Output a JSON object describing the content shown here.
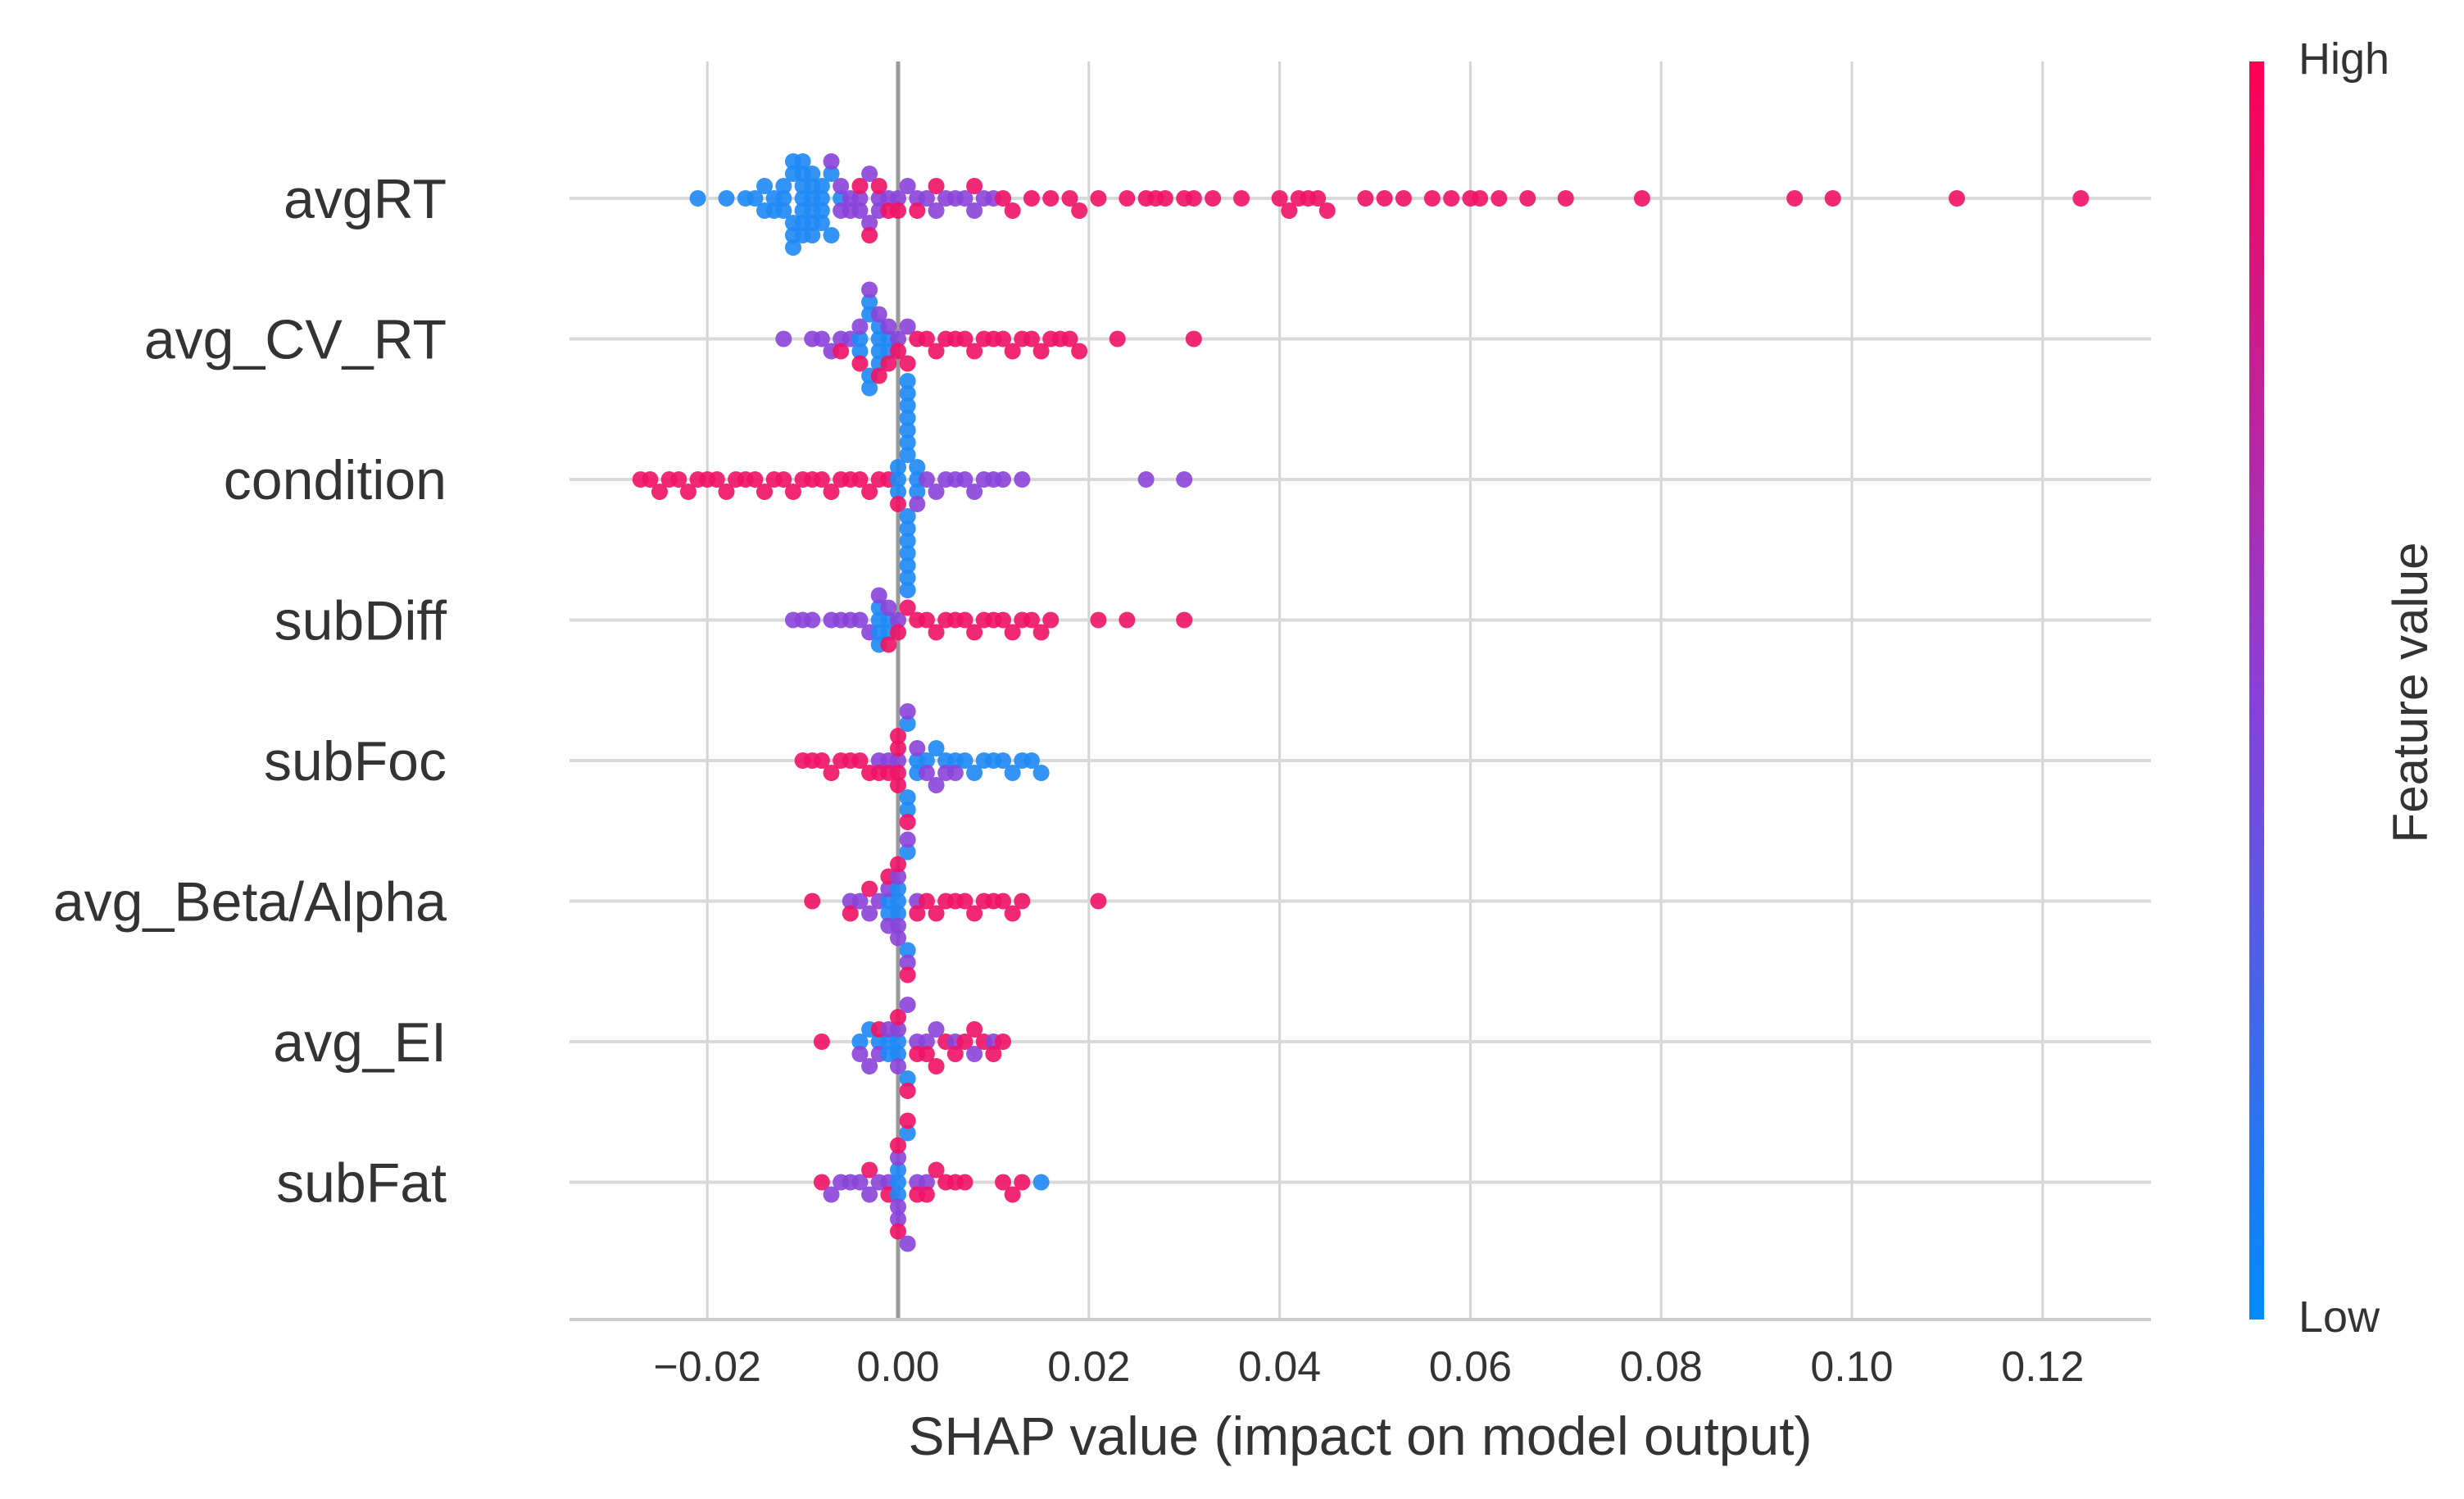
{
  "chart_data": {
    "type": "scatter",
    "subtype": "shap-beeswarm",
    "title": "",
    "xlabel": "SHAP value (impact on model output)",
    "ylabel": "",
    "xlim": [
      -0.034,
      0.132
    ],
    "x_ticks": [
      -0.02,
      0.0,
      0.02,
      0.04,
      0.06,
      0.08,
      0.1,
      0.12
    ],
    "x_tick_labels": [
      "−0.02",
      "0.00",
      "0.02",
      "0.04",
      "0.06",
      "0.08",
      "0.10",
      "0.12"
    ],
    "grid": true,
    "features": [
      "avgRT",
      "avg_CV_RT",
      "condition",
      "subDiff",
      "subFoc",
      "avg_Beta/Alpha",
      "avg_EI",
      "subFat"
    ],
    "colorbar": {
      "title": "Feature value",
      "high_label": "High",
      "low_label": "Low",
      "high_color": "#ff0052",
      "low_color": "#008bfb"
    },
    "series": [
      {
        "feature": "avgRT",
        "low_values": [
          -0.021,
          -0.018,
          -0.016,
          -0.015,
          -0.014,
          -0.014,
          -0.013,
          -0.013,
          -0.012,
          -0.012,
          -0.012,
          -0.011,
          -0.011,
          -0.011,
          -0.011,
          -0.011,
          -0.01,
          -0.01,
          -0.01,
          -0.01,
          -0.01,
          -0.01,
          -0.01,
          -0.009,
          -0.009,
          -0.009,
          -0.009,
          -0.009,
          -0.009,
          -0.008,
          -0.008,
          -0.008,
          -0.008,
          -0.007,
          -0.007,
          -0.006
        ],
        "mid_values": [
          -0.007,
          -0.006,
          -0.006,
          -0.005,
          -0.005,
          -0.004,
          -0.004,
          -0.003,
          -0.003,
          -0.002,
          -0.002,
          -0.001,
          0.0,
          0.001,
          0.002,
          0.003,
          0.004,
          0.005,
          0.006,
          0.007,
          0.008,
          0.009,
          0.01
        ],
        "high_values": [
          -0.004,
          -0.003,
          -0.002,
          -0.001,
          0.0,
          0.002,
          0.004,
          0.008,
          0.011,
          0.012,
          0.014,
          0.016,
          0.018,
          0.019,
          0.021,
          0.024,
          0.026,
          0.027,
          0.028,
          0.03,
          0.031,
          0.033,
          0.036,
          0.04,
          0.041,
          0.042,
          0.043,
          0.044,
          0.045,
          0.049,
          0.051,
          0.053,
          0.056,
          0.058,
          0.06,
          0.061,
          0.063,
          0.066,
          0.07,
          0.078,
          0.094,
          0.098,
          0.111,
          0.124
        ]
      },
      {
        "feature": "avg_CV_RT",
        "low_values": [
          -0.004,
          -0.004,
          -0.003,
          -0.003,
          -0.003,
          -0.003,
          -0.002,
          -0.002,
          -0.002,
          -0.002,
          -0.001,
          -0.001
        ],
        "mid_values": [
          -0.012,
          -0.009,
          -0.008,
          -0.007,
          -0.006,
          -0.005,
          -0.004,
          -0.003,
          -0.002,
          -0.001,
          0.0,
          0.001
        ],
        "high_values": [
          -0.006,
          -0.004,
          -0.002,
          -0.001,
          0.0,
          0.001,
          0.002,
          0.003,
          0.004,
          0.005,
          0.006,
          0.007,
          0.008,
          0.009,
          0.01,
          0.011,
          0.012,
          0.013,
          0.014,
          0.015,
          0.016,
          0.017,
          0.018,
          0.019,
          0.023,
          0.031
        ]
      },
      {
        "feature": "condition",
        "low_values": [
          0.0,
          0.0,
          0.0,
          0.001,
          0.001,
          0.001,
          0.001,
          0.001,
          0.001,
          0.001,
          0.001,
          0.001,
          0.001,
          0.001,
          0.001,
          0.001,
          0.001,
          0.002,
          0.002,
          0.002
        ],
        "mid_values": [
          0.002,
          0.003,
          0.004,
          0.005,
          0.006,
          0.007,
          0.008,
          0.009,
          0.01,
          0.011,
          0.013,
          0.026,
          0.03
        ],
        "high_values": [
          -0.027,
          -0.026,
          -0.025,
          -0.024,
          -0.023,
          -0.022,
          -0.021,
          -0.02,
          -0.019,
          -0.018,
          -0.017,
          -0.016,
          -0.015,
          -0.014,
          -0.013,
          -0.012,
          -0.011,
          -0.01,
          -0.009,
          -0.008,
          -0.007,
          -0.006,
          -0.005,
          -0.004,
          -0.003,
          -0.002,
          -0.001,
          0.0
        ]
      },
      {
        "feature": "subDiff",
        "low_values": [
          -0.002,
          -0.002,
          -0.002,
          -0.002,
          -0.001,
          -0.001
        ],
        "mid_values": [
          -0.011,
          -0.01,
          -0.009,
          -0.007,
          -0.006,
          -0.005,
          -0.004,
          -0.003,
          -0.002,
          -0.001,
          0.0
        ],
        "high_values": [
          -0.001,
          0.0,
          0.001,
          0.002,
          0.003,
          0.004,
          0.005,
          0.006,
          0.007,
          0.008,
          0.009,
          0.01,
          0.011,
          0.012,
          0.013,
          0.014,
          0.015,
          0.016,
          0.021,
          0.024,
          0.03
        ]
      },
      {
        "feature": "subFoc",
        "low_values": [
          0.001,
          0.001,
          0.001,
          0.002,
          0.002,
          0.003,
          0.004,
          0.005,
          0.006,
          0.007,
          0.008,
          0.009,
          0.01,
          0.011,
          0.012,
          0.013,
          0.014,
          0.015
        ],
        "mid_values": [
          -0.002,
          -0.001,
          0.0,
          0.001,
          0.002,
          0.003,
          0.004,
          0.005,
          0.006
        ],
        "high_values": [
          -0.01,
          -0.009,
          -0.008,
          -0.007,
          -0.006,
          -0.005,
          -0.004,
          -0.003,
          -0.002,
          -0.001,
          0.0,
          0.0,
          0.0,
          0.0,
          0.001
        ]
      },
      {
        "feature": "avg_Beta/Alpha",
        "low_values": [
          -0.001,
          -0.001,
          0.0,
          0.0,
          0.0,
          0.001,
          0.001
        ],
        "mid_values": [
          -0.005,
          -0.004,
          -0.003,
          -0.002,
          -0.001,
          -0.001,
          0.0,
          0.0,
          0.0,
          0.001,
          0.001,
          0.002
        ],
        "high_values": [
          -0.009,
          -0.005,
          -0.003,
          -0.001,
          0.0,
          0.001,
          0.002,
          0.003,
          0.004,
          0.005,
          0.006,
          0.007,
          0.008,
          0.009,
          0.01,
          0.011,
          0.012,
          0.013,
          0.021
        ]
      },
      {
        "feature": "avg_EI",
        "low_values": [
          -0.004,
          -0.003,
          -0.002,
          -0.001,
          -0.001,
          0.0,
          0.0,
          0.001
        ],
        "mid_values": [
          -0.004,
          -0.003,
          -0.002,
          -0.001,
          0.0,
          0.0,
          0.001,
          0.002,
          0.003,
          0.004,
          0.006,
          0.008,
          0.01
        ],
        "high_values": [
          -0.008,
          -0.002,
          0.0,
          0.001,
          0.002,
          0.003,
          0.004,
          0.005,
          0.006,
          0.007,
          0.008,
          0.009,
          0.01,
          0.011
        ]
      },
      {
        "feature": "subFat",
        "low_values": [
          0.0,
          0.0,
          0.0,
          0.001,
          0.015
        ],
        "mid_values": [
          -0.007,
          -0.006,
          -0.005,
          -0.004,
          -0.003,
          -0.002,
          -0.001,
          0.0,
          0.0,
          0.0,
          0.001,
          0.002,
          0.003
        ],
        "high_values": [
          -0.008,
          -0.003,
          -0.001,
          0.0,
          0.0,
          0.001,
          0.002,
          0.003,
          0.004,
          0.005,
          0.006,
          0.007,
          0.011,
          0.012,
          0.013
        ]
      }
    ]
  }
}
